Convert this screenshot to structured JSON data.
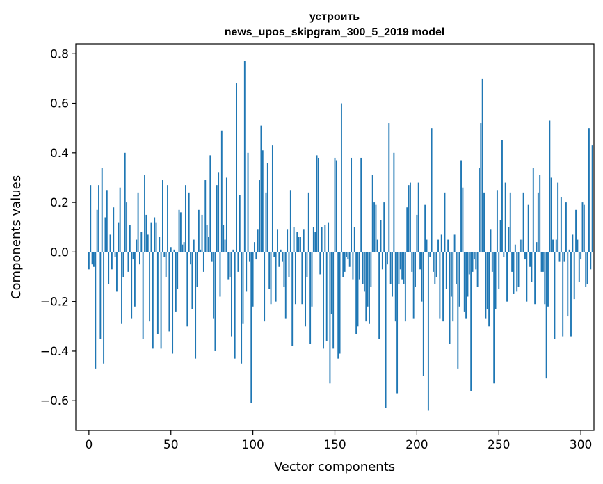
{
  "chart_data": {
    "type": "bar",
    "title": "устроить",
    "subtitle": "news_upos_skipgram_300_5_2019 model",
    "xlabel": "Vector components",
    "ylabel": "Components values",
    "xlim": [
      -8,
      308
    ],
    "ylim": [
      -0.72,
      0.84
    ],
    "xticks": [
      0,
      50,
      100,
      150,
      200,
      250,
      300
    ],
    "xtick_labels": [
      "0",
      "50",
      "100",
      "150",
      "200",
      "250",
      "300"
    ],
    "yticks": [
      -0.6,
      -0.4,
      -0.2,
      0.0,
      0.2,
      0.4,
      0.6,
      0.8
    ],
    "ytick_labels": [
      "−0.6",
      "−0.4",
      "−0.2",
      "0.0",
      "0.2",
      "0.4",
      "0.6",
      "0.8"
    ],
    "bar_color": "#1f77b4",
    "grid": false,
    "values": [
      -0.07,
      0.27,
      -0.05,
      -0.06,
      -0.47,
      0.17,
      0.27,
      -0.35,
      0.34,
      -0.45,
      0.14,
      0.25,
      -0.13,
      0.07,
      -0.07,
      0.18,
      -0.02,
      -0.16,
      0.12,
      0.26,
      -0.29,
      -0.1,
      0.4,
      0.2,
      -0.08,
      0.11,
      -0.27,
      -0.03,
      -0.22,
      0.05,
      0.24,
      -0.05,
      0.08,
      -0.35,
      0.31,
      0.15,
      0.07,
      -0.28,
      0.12,
      -0.39,
      0.14,
      0.12,
      -0.33,
      0.06,
      -0.39,
      0.29,
      -0.02,
      -0.1,
      0.27,
      -0.32,
      0.02,
      -0.41,
      0.01,
      -0.24,
      -0.15,
      0.17,
      0.16,
      0.03,
      0.04,
      0.27,
      -0.3,
      0.24,
      -0.05,
      -0.23,
      0.05,
      -0.43,
      -0.14,
      0.17,
      0.01,
      0.15,
      -0.08,
      0.29,
      0.11,
      0.06,
      0.39,
      -0.04,
      -0.27,
      -0.4,
      0.27,
      0.32,
      -0.18,
      0.49,
      0.11,
      0.05,
      0.3,
      -0.11,
      -0.1,
      -0.34,
      0.01,
      -0.43,
      0.68,
      -0.08,
      0.23,
      -0.45,
      -0.29,
      0.77,
      -0.16,
      0.4,
      -0.04,
      -0.61,
      -0.22,
      0.04,
      -0.03,
      0.09,
      0.29,
      0.51,
      0.41,
      -0.28,
      0.24,
      0.36,
      -0.15,
      -0.21,
      0.43,
      -0.02,
      -0.2,
      0.09,
      -0.06,
      0.01,
      -0.04,
      -0.14,
      -0.27,
      0.09,
      -0.1,
      0.25,
      -0.38,
      0.1,
      -0.21,
      0.08,
      0.06,
      0.06,
      -0.21,
      0.09,
      -0.3,
      -0.1,
      0.24,
      -0.37,
      -0.22,
      0.1,
      0.08,
      0.39,
      0.38,
      -0.09,
      0.1,
      -0.39,
      0.11,
      -0.36,
      0.12,
      -0.53,
      -0.25,
      -0.39,
      0.38,
      0.37,
      -0.43,
      -0.41,
      0.6,
      -0.1,
      -0.08,
      -0.02,
      -0.03,
      -0.06,
      0.38,
      -0.11,
      0.1,
      -0.33,
      -0.3,
      -0.11,
      0.38,
      -0.13,
      -0.16,
      -0.28,
      -0.22,
      -0.29,
      -0.14,
      0.31,
      0.2,
      0.19,
      0.05,
      -0.35,
      0.13,
      -0.07,
      0.2,
      -0.63,
      -0.05,
      0.52,
      -0.13,
      -0.18,
      0.4,
      -0.28,
      -0.57,
      -0.13,
      -0.07,
      -0.11,
      -0.13,
      -0.28,
      0.18,
      0.27,
      0.28,
      -0.08,
      -0.27,
      -0.14,
      0.15,
      0.28,
      -0.07,
      -0.2,
      -0.5,
      0.19,
      0.05,
      -0.64,
      -0.02,
      0.5,
      -0.08,
      -0.13,
      -0.1,
      0.05,
      -0.27,
      0.07,
      -0.28,
      0.24,
      -0.15,
      0.05,
      -0.37,
      -0.18,
      -0.28,
      0.07,
      -0.13,
      -0.47,
      -0.22,
      0.37,
      0.26,
      -0.24,
      -0.27,
      -0.18,
      -0.09,
      -0.56,
      -0.08,
      -0.03,
      -0.07,
      -0.14,
      0.34,
      0.52,
      0.7,
      0.24,
      -0.27,
      -0.23,
      -0.3,
      0.09,
      -0.08,
      -0.53,
      -0.23,
      0.25,
      -0.15,
      0.13,
      0.45,
      -0.02,
      0.28,
      -0.2,
      0.1,
      0.24,
      -0.08,
      -0.17,
      0.03,
      -0.16,
      -0.14,
      0.05,
      0.05,
      0.24,
      -0.03,
      -0.2,
      0.19,
      -0.06,
      -0.12,
      0.34,
      -0.21,
      0.04,
      0.24,
      0.31,
      -0.08,
      -0.08,
      -0.21,
      -0.51,
      -0.22,
      0.53,
      0.3,
      0.05,
      -0.35,
      0.05,
      0.28,
      -0.04,
      0.22,
      -0.34,
      -0.04,
      0.2,
      -0.26,
      0.01,
      -0.34,
      0.07,
      -0.19,
      0.17,
      0.05,
      -0.12,
      -0.03,
      0.2,
      0.19,
      -0.14,
      -0.13,
      0.5,
      -0.07,
      0.43
    ]
  }
}
